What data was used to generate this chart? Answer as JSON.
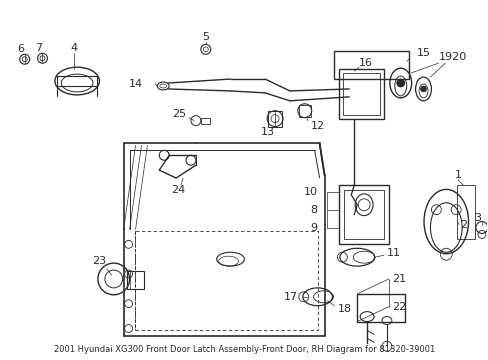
{
  "bg_color": "#ffffff",
  "line_color": "#2a2a2a",
  "fig_width": 4.89,
  "fig_height": 3.6,
  "dpi": 100,
  "title": "2001 Hyundai XG300 Front Door Latch Assembly-Front Door, RH Diagram for 81320-39001",
  "title_fontsize": 6.0,
  "label_fontsize": 8
}
